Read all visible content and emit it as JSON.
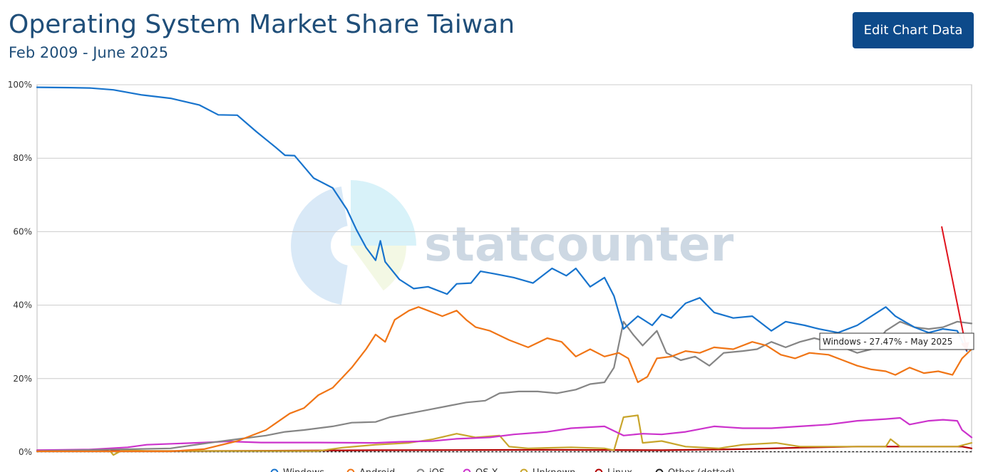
{
  "header": {
    "title": "Operating System Market Share Taiwan",
    "subtitle": "Feb 2009 - June 2025",
    "edit_button_label": "Edit Chart Data"
  },
  "watermark": {
    "text": "statcounter"
  },
  "tooltip": {
    "text": "Windows - 27.47% - May 2025"
  },
  "colors": {
    "windows": "#1874cd",
    "android": "#f07516",
    "ios": "#858585",
    "osx": "#cc33cc",
    "unknown": "#c8a52c",
    "linux": "#b30000",
    "other": "#222222",
    "annotation": "#e0141e",
    "grid": "#cccccc"
  },
  "chart_data": {
    "type": "line",
    "title": "Operating System Market Share Taiwan",
    "subtitle": "Feb 2009 - June 2025",
    "x_range": [
      "2009-02",
      "2025-06"
    ],
    "ylim": [
      0,
      100
    ],
    "y_ticks": [
      "0%",
      "20%",
      "40%",
      "60%",
      "80%",
      "100%"
    ],
    "grid": "horizontal",
    "legend": "bottom",
    "series": [
      {
        "name": "Windows",
        "color": "#1874cd",
        "points": [
          [
            "2009-02",
            99.3
          ],
          [
            "2009-09",
            99.2
          ],
          [
            "2010-01",
            99.1
          ],
          [
            "2010-06",
            98.6
          ],
          [
            "2010-12",
            97.2
          ],
          [
            "2011-06",
            96.3
          ],
          [
            "2011-12",
            94.5
          ],
          [
            "2012-04",
            91.8
          ],
          [
            "2012-08",
            91.7
          ],
          [
            "2012-12",
            87.2
          ],
          [
            "2013-04",
            83.0
          ],
          [
            "2013-06",
            80.8
          ],
          [
            "2013-08",
            80.7
          ],
          [
            "2013-12",
            74.6
          ],
          [
            "2014-04",
            71.9
          ],
          [
            "2014-07",
            66.0
          ],
          [
            "2014-09",
            60.5
          ],
          [
            "2014-11",
            55.7
          ],
          [
            "2015-01",
            52.2
          ],
          [
            "2015-02",
            57.5
          ],
          [
            "2015-03",
            51.8
          ],
          [
            "2015-06",
            47.0
          ],
          [
            "2015-09",
            44.5
          ],
          [
            "2015-12",
            45.0
          ],
          [
            "2016-04",
            43.0
          ],
          [
            "2016-06",
            45.8
          ],
          [
            "2016-09",
            46.0
          ],
          [
            "2016-11",
            49.2
          ],
          [
            "2017-02",
            48.5
          ],
          [
            "2017-06",
            47.5
          ],
          [
            "2017-10",
            46.0
          ],
          [
            "2018-02",
            50.0
          ],
          [
            "2018-05",
            48.0
          ],
          [
            "2018-07",
            50.0
          ],
          [
            "2018-10",
            45.0
          ],
          [
            "2019-01",
            47.5
          ],
          [
            "2019-03",
            42.5
          ],
          [
            "2019-05",
            33.5
          ],
          [
            "2019-08",
            37.0
          ],
          [
            "2019-11",
            34.5
          ],
          [
            "2020-01",
            37.5
          ],
          [
            "2020-03",
            36.5
          ],
          [
            "2020-06",
            40.5
          ],
          [
            "2020-09",
            42.0
          ],
          [
            "2020-12",
            38.0
          ],
          [
            "2021-04",
            36.5
          ],
          [
            "2021-08",
            37.0
          ],
          [
            "2021-12",
            33.0
          ],
          [
            "2022-03",
            35.5
          ],
          [
            "2022-07",
            34.5
          ],
          [
            "2022-10",
            33.5
          ],
          [
            "2023-02",
            32.5
          ],
          [
            "2023-06",
            34.5
          ],
          [
            "2023-09",
            37.0
          ],
          [
            "2023-12",
            39.5
          ],
          [
            "2024-02",
            37.0
          ],
          [
            "2024-06",
            34.0
          ],
          [
            "2024-09",
            32.5
          ],
          [
            "2024-12",
            33.5
          ],
          [
            "2025-03",
            33.0
          ],
          [
            "2025-05",
            27.47
          ]
        ]
      },
      {
        "name": "Android",
        "color": "#f07516",
        "points": [
          [
            "2009-02",
            0.2
          ],
          [
            "2011-06",
            0.2
          ],
          [
            "2012-01",
            0.8
          ],
          [
            "2012-08",
            3.0
          ],
          [
            "2013-02",
            6.0
          ],
          [
            "2013-07",
            10.5
          ],
          [
            "2013-10",
            12.0
          ],
          [
            "2014-01",
            15.5
          ],
          [
            "2014-04",
            17.5
          ],
          [
            "2014-08",
            23.0
          ],
          [
            "2014-11",
            28.0
          ],
          [
            "2015-01",
            32.0
          ],
          [
            "2015-03",
            30.0
          ],
          [
            "2015-05",
            36.0
          ],
          [
            "2015-08",
            38.5
          ],
          [
            "2015-10",
            39.5
          ],
          [
            "2015-12",
            38.5
          ],
          [
            "2016-03",
            37.0
          ],
          [
            "2016-06",
            38.5
          ],
          [
            "2016-08",
            36.0
          ],
          [
            "2016-10",
            34.0
          ],
          [
            "2017-01",
            33.0
          ],
          [
            "2017-05",
            30.5
          ],
          [
            "2017-09",
            28.5
          ],
          [
            "2018-01",
            31.0
          ],
          [
            "2018-04",
            30.0
          ],
          [
            "2018-07",
            26.0
          ],
          [
            "2018-10",
            28.0
          ],
          [
            "2019-01",
            26.0
          ],
          [
            "2019-04",
            27.0
          ],
          [
            "2019-06",
            25.5
          ],
          [
            "2019-08",
            19.0
          ],
          [
            "2019-10",
            20.5
          ],
          [
            "2019-12",
            25.5
          ],
          [
            "2020-03",
            26.0
          ],
          [
            "2020-06",
            27.5
          ],
          [
            "2020-09",
            27.0
          ],
          [
            "2020-12",
            28.5
          ],
          [
            "2021-04",
            28.0
          ],
          [
            "2021-08",
            30.0
          ],
          [
            "2021-11",
            29.0
          ],
          [
            "2022-02",
            26.5
          ],
          [
            "2022-05",
            25.5
          ],
          [
            "2022-08",
            27.0
          ],
          [
            "2022-12",
            26.5
          ],
          [
            "2023-03",
            25.0
          ],
          [
            "2023-06",
            23.5
          ],
          [
            "2023-09",
            22.5
          ],
          [
            "2023-12",
            22.0
          ],
          [
            "2024-02",
            21.0
          ],
          [
            "2024-05",
            23.0
          ],
          [
            "2024-08",
            21.5
          ],
          [
            "2024-11",
            22.0
          ],
          [
            "2025-02",
            21.0
          ],
          [
            "2025-04",
            25.5
          ],
          [
            "2025-06",
            28.0
          ]
        ]
      },
      {
        "name": "iOS",
        "color": "#858585",
        "points": [
          [
            "2009-02",
            0.3
          ],
          [
            "2011-06",
            1.0
          ],
          [
            "2012-02",
            2.5
          ],
          [
            "2012-08",
            3.5
          ],
          [
            "2013-02",
            4.5
          ],
          [
            "2013-06",
            5.5
          ],
          [
            "2013-10",
            6.0
          ],
          [
            "2014-04",
            7.0
          ],
          [
            "2014-08",
            8.0
          ],
          [
            "2015-01",
            8.2
          ],
          [
            "2015-04",
            9.5
          ],
          [
            "2015-08",
            10.5
          ],
          [
            "2015-12",
            11.5
          ],
          [
            "2016-04",
            12.5
          ],
          [
            "2016-08",
            13.5
          ],
          [
            "2016-12",
            14.0
          ],
          [
            "2017-03",
            16.0
          ],
          [
            "2017-07",
            16.5
          ],
          [
            "2017-11",
            16.5
          ],
          [
            "2018-03",
            16.0
          ],
          [
            "2018-07",
            17.0
          ],
          [
            "2018-10",
            18.5
          ],
          [
            "2019-01",
            19.0
          ],
          [
            "2019-03",
            23.0
          ],
          [
            "2019-05",
            35.5
          ],
          [
            "2019-07",
            32.0
          ],
          [
            "2019-09",
            29.0
          ],
          [
            "2019-12",
            33.0
          ],
          [
            "2020-02",
            27.0
          ],
          [
            "2020-05",
            25.0
          ],
          [
            "2020-08",
            26.0
          ],
          [
            "2020-11",
            23.5
          ],
          [
            "2021-02",
            27.0
          ],
          [
            "2021-06",
            27.5
          ],
          [
            "2021-09",
            28.0
          ],
          [
            "2021-12",
            30.0
          ],
          [
            "2022-03",
            28.5
          ],
          [
            "2022-06",
            30.0
          ],
          [
            "2022-09",
            31.0
          ],
          [
            "2022-12",
            30.0
          ],
          [
            "2023-03",
            28.5
          ],
          [
            "2023-06",
            27.0
          ],
          [
            "2023-09",
            28.0
          ],
          [
            "2023-12",
            33.0
          ],
          [
            "2024-03",
            35.5
          ],
          [
            "2024-06",
            34.0
          ],
          [
            "2024-09",
            33.5
          ],
          [
            "2024-12",
            34.0
          ],
          [
            "2025-03",
            35.5
          ],
          [
            "2025-06",
            35.0
          ]
        ]
      },
      {
        "name": "OS X",
        "color": "#cc33cc",
        "points": [
          [
            "2009-02",
            0.5
          ],
          [
            "2010-01",
            0.7
          ],
          [
            "2010-09",
            1.3
          ],
          [
            "2011-01",
            2.0
          ],
          [
            "2012-01",
            2.6
          ],
          [
            "2012-06",
            2.9
          ],
          [
            "2013-01",
            2.6
          ],
          [
            "2014-01",
            2.6
          ],
          [
            "2015-01",
            2.5
          ],
          [
            "2015-06",
            2.8
          ],
          [
            "2016-01",
            3.0
          ],
          [
            "2016-06",
            3.6
          ],
          [
            "2017-01",
            4.0
          ],
          [
            "2017-06",
            4.8
          ],
          [
            "2018-01",
            5.5
          ],
          [
            "2018-06",
            6.5
          ],
          [
            "2019-01",
            7.0
          ],
          [
            "2019-05",
            4.5
          ],
          [
            "2019-09",
            5.0
          ],
          [
            "2020-01",
            4.8
          ],
          [
            "2020-06",
            5.5
          ],
          [
            "2020-12",
            7.0
          ],
          [
            "2021-06",
            6.5
          ],
          [
            "2021-12",
            6.5
          ],
          [
            "2022-06",
            7.0
          ],
          [
            "2022-12",
            7.5
          ],
          [
            "2023-06",
            8.5
          ],
          [
            "2023-12",
            9.0
          ],
          [
            "2024-03",
            9.3
          ],
          [
            "2024-05",
            7.5
          ],
          [
            "2024-09",
            8.5
          ],
          [
            "2024-12",
            8.8
          ],
          [
            "2025-03",
            8.5
          ],
          [
            "2025-04",
            6.0
          ],
          [
            "2025-06",
            4.0
          ]
        ]
      },
      {
        "name": "Unknown",
        "color": "#c8a52c",
        "points": [
          [
            "2009-02",
            0.5
          ],
          [
            "2010-01",
            0.5
          ],
          [
            "2010-05",
            0.8
          ],
          [
            "2010-06",
            -0.8
          ],
          [
            "2010-08",
            0.6
          ],
          [
            "2011-01",
            0.3
          ],
          [
            "2012-01",
            0.3
          ],
          [
            "2013-01",
            0.3
          ],
          [
            "2014-01",
            0.3
          ],
          [
            "2014-06",
            1.2
          ],
          [
            "2015-01",
            2.0
          ],
          [
            "2015-08",
            2.5
          ],
          [
            "2016-01",
            3.5
          ],
          [
            "2016-06",
            5.0
          ],
          [
            "2016-10",
            4.0
          ],
          [
            "2017-03",
            4.5
          ],
          [
            "2017-05",
            1.5
          ],
          [
            "2017-09",
            1.0
          ],
          [
            "2018-06",
            1.3
          ],
          [
            "2019-01",
            1.0
          ],
          [
            "2019-03",
            0.5
          ],
          [
            "2019-05",
            9.5
          ],
          [
            "2019-08",
            10.0
          ],
          [
            "2019-09",
            2.5
          ],
          [
            "2020-01",
            3.0
          ],
          [
            "2020-06",
            1.5
          ],
          [
            "2021-01",
            1.0
          ],
          [
            "2021-06",
            2.0
          ],
          [
            "2022-01",
            2.5
          ],
          [
            "2022-06",
            1.5
          ],
          [
            "2023-01",
            1.5
          ],
          [
            "2023-06",
            1.5
          ],
          [
            "2023-12",
            1.5
          ],
          [
            "2024-01",
            3.5
          ],
          [
            "2024-03",
            1.5
          ],
          [
            "2024-09",
            1.5
          ],
          [
            "2025-03",
            1.5
          ],
          [
            "2025-06",
            2.5
          ]
        ]
      },
      {
        "name": "Linux",
        "color": "#b30000",
        "points": [
          [
            "2009-02",
            0.3
          ],
          [
            "2012-01",
            0.3
          ],
          [
            "2015-01",
            0.5
          ],
          [
            "2018-01",
            0.6
          ],
          [
            "2020-01",
            0.5
          ],
          [
            "2021-06",
            0.8
          ],
          [
            "2022-06",
            1.2
          ],
          [
            "2023-06",
            1.5
          ],
          [
            "2024-06",
            1.5
          ],
          [
            "2025-04",
            1.5
          ],
          [
            "2025-06",
            1.0
          ]
        ]
      },
      {
        "name": "Other (dotted)",
        "color": "#222222",
        "dotted": true,
        "points": [
          [
            "2009-02",
            0.1
          ],
          [
            "2025-06",
            0.1
          ]
        ]
      }
    ]
  }
}
